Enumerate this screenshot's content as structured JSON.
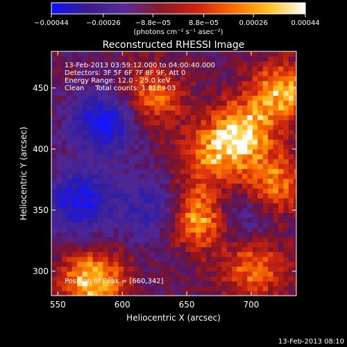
{
  "colorbar": {
    "tick_labels": [
      "−0.00044",
      "−0.00026",
      "−8.8e−05",
      "8.8e−05",
      "0.00026",
      "0.00044"
    ],
    "tick_values": [
      -0.00044,
      -0.00026,
      -8.8e-05,
      8.8e-05,
      0.00026,
      0.00044
    ],
    "range": [
      -0.00044,
      0.00044
    ],
    "unit_label": "(photons cm⁻² s⁻¹ asec⁻²)",
    "colors": [
      "#1010ff",
      "#3a1c8c",
      "#5a2a9a",
      "#8a1a2a",
      "#d02010",
      "#ff6a00",
      "#ffc020",
      "#ffffff"
    ]
  },
  "chart_data": {
    "type": "heatmap",
    "title": "Reconstructed RHESSI Image",
    "xlabel": "Heliocentric X (arcsec)",
    "ylabel": "Heliocentric Y (arcsec)",
    "xlim": [
      545,
      735
    ],
    "ylim": [
      280,
      480
    ],
    "xticks": [
      550,
      600,
      650,
      700
    ],
    "yticks": [
      300,
      350,
      400,
      450
    ],
    "annotations": [
      "13-Feb-2013 03:59:12.000 to 04:00:40.000",
      "Detectors: 3F 5F 6F 7F 8F 9F, Att 0",
      "Energy Range: 12.0 - 25.0 keV",
      "Clean     Total counts: 1.81E+03"
    ],
    "peak_label": "Position of Peak = [660,342]",
    "peak": [
      660,
      342
    ],
    "hot_regions": [
      {
        "x": 575,
        "y": 290,
        "value": 0.00042
      },
      {
        "x": 660,
        "y": 342,
        "value": 0.00044
      },
      {
        "x": 690,
        "y": 412,
        "value": 0.0004
      },
      {
        "x": 722,
        "y": 445,
        "value": 0.00036
      },
      {
        "x": 715,
        "y": 370,
        "value": 0.00032
      },
      {
        "x": 620,
        "y": 440,
        "value": 0.0003
      },
      {
        "x": 700,
        "y": 300,
        "value": 0.0003
      },
      {
        "x": 665,
        "y": 390,
        "value": 0.00026
      }
    ],
    "cold_regions": [
      {
        "x": 585,
        "y": 420,
        "value": -0.00044
      },
      {
        "x": 565,
        "y": 355,
        "value": -0.0004
      },
      {
        "x": 685,
        "y": 345,
        "value": -0.00026
      },
      {
        "x": 620,
        "y": 350,
        "value": -0.00026
      }
    ]
  },
  "footer_timestamp": "13-Feb-2013 08:10"
}
